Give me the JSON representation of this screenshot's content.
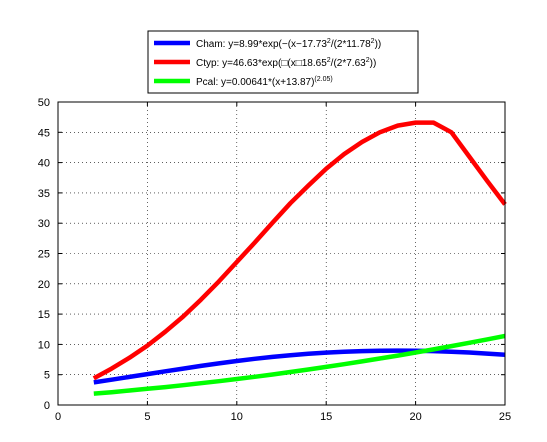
{
  "chart_data": {
    "type": "line",
    "title": "",
    "xlabel": "",
    "ylabel": "",
    "xlim": [
      0,
      25
    ],
    "ylim": [
      0,
      50
    ],
    "x_ticks": [
      0,
      5,
      10,
      15,
      20,
      25
    ],
    "y_ticks": [
      0,
      5,
      10,
      15,
      20,
      25,
      30,
      35,
      40,
      45,
      50
    ],
    "x_tick_labels": [
      "0",
      "5",
      "10",
      "15",
      "20",
      "25"
    ],
    "y_tick_labels": [
      "0",
      "5",
      "10",
      "15",
      "20",
      "25",
      "30",
      "35",
      "40",
      "45",
      "50"
    ],
    "grid": true,
    "legend_position": "top-center",
    "x": [
      2,
      3,
      4,
      5,
      6,
      7,
      8,
      9,
      10,
      11,
      12,
      13,
      14,
      15,
      16,
      17,
      18,
      19,
      20,
      21,
      22,
      23,
      24,
      25
    ],
    "series": [
      {
        "name": "Cham",
        "legend_label": "Cham:  y=8.99*exp(−(x−17.73",
        "legend_sup1": "2",
        "legend_mid": "/(2*11.78",
        "legend_sup2": "2",
        "legend_end": "))",
        "color": "#0000ff",
        "values": [
          3.73,
          4.18,
          4.64,
          5.1,
          5.56,
          6.01,
          6.45,
          6.87,
          7.26,
          7.62,
          7.94,
          8.22,
          8.46,
          8.65,
          8.8,
          8.9,
          8.96,
          8.98,
          8.96,
          8.89,
          8.79,
          8.66,
          8.49,
          8.29
        ]
      },
      {
        "name": "Ctyp",
        "legend_label": "Ctyp:  y=46.63*exp(□(x□18.65",
        "legend_sup1": "2",
        "legend_mid": "/(2*7.63",
        "legend_sup2": "2",
        "legend_end": "))",
        "color": "#ff0000",
        "values": [
          4.4,
          6.0,
          7.8,
          9.8,
          12.1,
          14.6,
          17.4,
          20.4,
          23.6,
          26.8,
          30.1,
          33.3,
          36.2,
          39.0,
          41.4,
          43.4,
          45.0,
          46.1,
          46.6,
          46.6,
          45.0,
          41.0,
          37.0,
          33.1
        ]
      },
      {
        "name": "Pcal",
        "legend_label": "Pcal:  y=0.00641*(x+13.87)",
        "legend_sup1": "(2.05)",
        "legend_mid": "",
        "legend_sup2": "",
        "legend_end": "",
        "color": "#00ff00",
        "values": [
          1.88,
          2.12,
          2.39,
          2.67,
          2.96,
          3.27,
          3.59,
          3.93,
          4.29,
          4.66,
          5.04,
          5.44,
          5.86,
          6.29,
          6.73,
          7.19,
          7.67,
          8.16,
          8.66,
          9.18,
          9.72,
          10.27,
          10.83,
          11.4
        ]
      }
    ]
  }
}
